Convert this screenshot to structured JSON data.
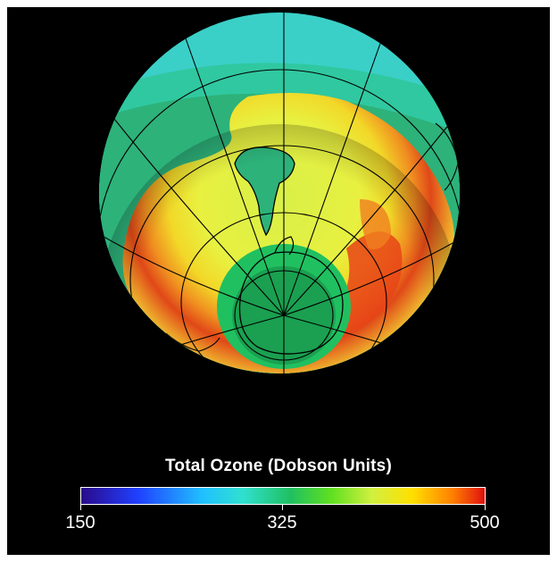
{
  "legend": {
    "title": "Total Ozone (Dobson Units)",
    "min_label": "150",
    "mid_label": "325",
    "max_label": "500",
    "range": [
      150,
      500
    ],
    "gradient_colors": [
      "#2a0a8a",
      "#2040ff",
      "#20c0ff",
      "#30e0d0",
      "#20c060",
      "#60e020",
      "#d0f040",
      "#ffe000",
      "#ff8000",
      "#e01010"
    ]
  },
  "map": {
    "projection": "orthographic",
    "center": "south-pole",
    "background_color": "#000000",
    "ozone_colors": {
      "very_low": "#20c060",
      "low": "#2db27a",
      "medium_low": "#30c8a0",
      "medium": "#3ad0c8",
      "high": "#c8ec50",
      "very_high": "#f0e030",
      "peak": "#e03010"
    }
  }
}
